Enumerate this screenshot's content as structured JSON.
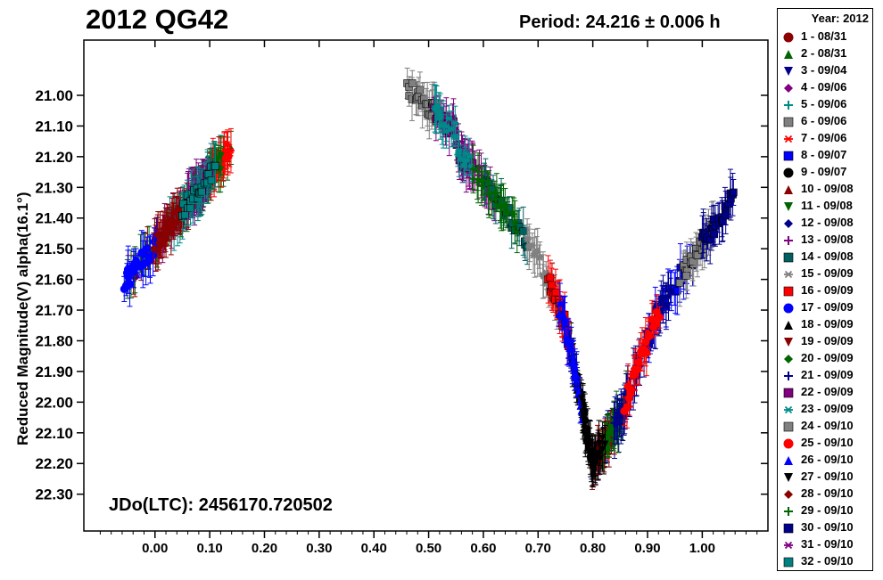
{
  "chart_data": {
    "type": "scatter",
    "title": "2012 QG42",
    "period_label": "Period: 24.216 ± 0.006 h",
    "jd_label": "JDo(LTC): 2456170.720502",
    "ylabel": "Reduced Magnitude(V) alpha(16.1°)",
    "xlabel": "",
    "xlim": [
      -0.13,
      1.12
    ],
    "ylim": [
      22.42,
      20.82
    ],
    "y_inverted": true,
    "x_ticks": [
      "0.00",
      "0.10",
      "0.20",
      "0.30",
      "0.40",
      "0.50",
      "0.60",
      "0.70",
      "0.80",
      "0.90",
      "1.00"
    ],
    "x_tick_values": [
      0.0,
      0.1,
      0.2,
      0.3,
      0.4,
      0.5,
      0.6,
      0.7,
      0.8,
      0.9,
      1.0
    ],
    "y_ticks": [
      "21.00",
      "21.10",
      "21.20",
      "21.30",
      "21.40",
      "21.50",
      "21.60",
      "21.70",
      "21.80",
      "21.90",
      "22.00",
      "22.10",
      "22.20",
      "22.30"
    ],
    "y_tick_values": [
      21.0,
      21.1,
      21.2,
      21.3,
      21.4,
      21.5,
      21.6,
      21.7,
      21.8,
      21.9,
      22.0,
      22.1,
      22.2,
      22.3
    ],
    "grid": false,
    "legend_position": "right",
    "legend_title": "Year: 2012",
    "lightcurve": {
      "segments": [
        {
          "x": [
            -0.06,
            0.14
          ],
          "y": [
            21.62,
            21.17
          ]
        },
        {
          "x": [
            0.46,
            0.55
          ],
          "y": [
            20.97,
            21.12
          ]
        },
        {
          "x": [
            0.51,
            0.6
          ],
          "y": [
            21.1,
            21.28
          ]
        },
        {
          "x": [
            0.6,
            0.7
          ],
          "y": [
            21.28,
            21.52
          ]
        },
        {
          "x": [
            0.7,
            0.75
          ],
          "y": [
            21.52,
            21.75
          ]
        },
        {
          "x": [
            0.75,
            0.8
          ],
          "y": [
            21.75,
            22.2
          ]
        },
        {
          "x": [
            0.8,
            0.85
          ],
          "y": [
            22.2,
            22.05
          ]
        },
        {
          "x": [
            0.85,
            0.92
          ],
          "y": [
            22.05,
            21.7
          ]
        },
        {
          "x": [
            0.92,
            1.06
          ],
          "y": [
            21.7,
            21.32
          ]
        }
      ]
    },
    "series": [
      {
        "name": "1 - 08/31",
        "marker": "circle",
        "color": "#8b0000",
        "x_range": [
          -0.05,
          0.14
        ]
      },
      {
        "name": "2 - 08/31",
        "marker": "triangle-up",
        "color": "#006400",
        "x_range": [
          -0.05,
          0.14
        ]
      },
      {
        "name": "3 - 09/04",
        "marker": "triangle-down",
        "color": "#00008b",
        "x_range": [
          0.8,
          0.86
        ]
      },
      {
        "name": "4 - 09/06",
        "marker": "diamond",
        "color": "#800080",
        "x_range": [
          0.0,
          0.1
        ]
      },
      {
        "name": "5 - 09/06",
        "marker": "plus",
        "color": "#008b8b",
        "x_range": [
          0.03,
          0.12
        ]
      },
      {
        "name": "6 - 09/06",
        "marker": "square",
        "color": "#808080",
        "x_range": [
          0.46,
          0.52
        ]
      },
      {
        "name": "7 - 09/06",
        "marker": "asterisk",
        "color": "#ff0000",
        "x_range": [
          0.1,
          0.14
        ]
      },
      {
        "name": "8 - 09/07",
        "marker": "square",
        "color": "#0000ff",
        "x_range": [
          0.9,
          0.98
        ]
      },
      {
        "name": "9 - 09/07",
        "marker": "circle",
        "color": "#000000",
        "x_range": [
          0.76,
          0.82
        ]
      },
      {
        "name": "10 - 09/08",
        "marker": "triangle-up",
        "color": "#8b0000",
        "x_range": [
          0.0,
          0.06
        ]
      },
      {
        "name": "11 - 09/08",
        "marker": "triangle-down",
        "color": "#006400",
        "x_range": [
          0.07,
          0.12
        ]
      },
      {
        "name": "12 - 09/08",
        "marker": "diamond",
        "color": "#00008b",
        "x_range": [
          0.88,
          0.94
        ]
      },
      {
        "name": "13 - 09/08",
        "marker": "plus",
        "color": "#800080",
        "x_range": [
          0.55,
          0.62
        ]
      },
      {
        "name": "14 - 09/08",
        "marker": "square",
        "color": "#006060",
        "x_range": [
          0.6,
          0.68
        ]
      },
      {
        "name": "15 - 09/09",
        "marker": "asterisk",
        "color": "#808080",
        "x_range": [
          0.68,
          0.74
        ]
      },
      {
        "name": "16 - 09/09",
        "marker": "square",
        "color": "#ff0000",
        "x_range": [
          0.72,
          0.76
        ]
      },
      {
        "name": "17 - 09/09",
        "marker": "circle",
        "color": "#0000ff",
        "x_range": [
          -0.06,
          0.0
        ]
      },
      {
        "name": "18 - 09/09",
        "marker": "triangle-up",
        "color": "#000000",
        "x_range": [
          0.76,
          0.8
        ]
      },
      {
        "name": "19 - 09/09",
        "marker": "triangle-down",
        "color": "#8b0000",
        "x_range": [
          0.8,
          0.84
        ]
      },
      {
        "name": "20 - 09/09",
        "marker": "diamond",
        "color": "#006400",
        "x_range": [
          0.82,
          0.86
        ]
      },
      {
        "name": "21 - 09/09",
        "marker": "plus",
        "color": "#00008b",
        "x_range": [
          0.84,
          0.88
        ]
      },
      {
        "name": "22 - 09/09",
        "marker": "square",
        "color": "#800080",
        "x_range": [
          0.51,
          0.58
        ]
      },
      {
        "name": "23 - 09/09",
        "marker": "asterisk",
        "color": "#008b8b",
        "x_range": [
          0.51,
          0.58
        ]
      },
      {
        "name": "24 - 09/10",
        "marker": "square",
        "color": "#808080",
        "x_range": [
          0.96,
          1.02
        ]
      },
      {
        "name": "25 - 09/10",
        "marker": "circle",
        "color": "#ff0000",
        "x_range": [
          0.86,
          0.92
        ]
      },
      {
        "name": "26 - 09/10",
        "marker": "triangle-up",
        "color": "#0000ff",
        "x_range": [
          0.74,
          0.78
        ]
      },
      {
        "name": "27 - 09/10",
        "marker": "triangle-down",
        "color": "#000000",
        "x_range": [
          0.78,
          0.82
        ]
      },
      {
        "name": "28 - 09/10",
        "marker": "diamond",
        "color": "#8b0000",
        "x_range": [
          0.0,
          0.05
        ]
      },
      {
        "name": "29 - 09/10",
        "marker": "plus",
        "color": "#006400",
        "x_range": [
          0.58,
          0.66
        ]
      },
      {
        "name": "30 - 09/10",
        "marker": "square",
        "color": "#00008b",
        "x_range": [
          1.0,
          1.06
        ]
      },
      {
        "name": "31 - 09/10",
        "marker": "asterisk",
        "color": "#800080",
        "x_range": [
          0.06,
          0.1
        ]
      },
      {
        "name": "32 - 09/10",
        "marker": "square",
        "color": "#008080",
        "x_range": [
          0.05,
          0.11
        ]
      }
    ]
  }
}
